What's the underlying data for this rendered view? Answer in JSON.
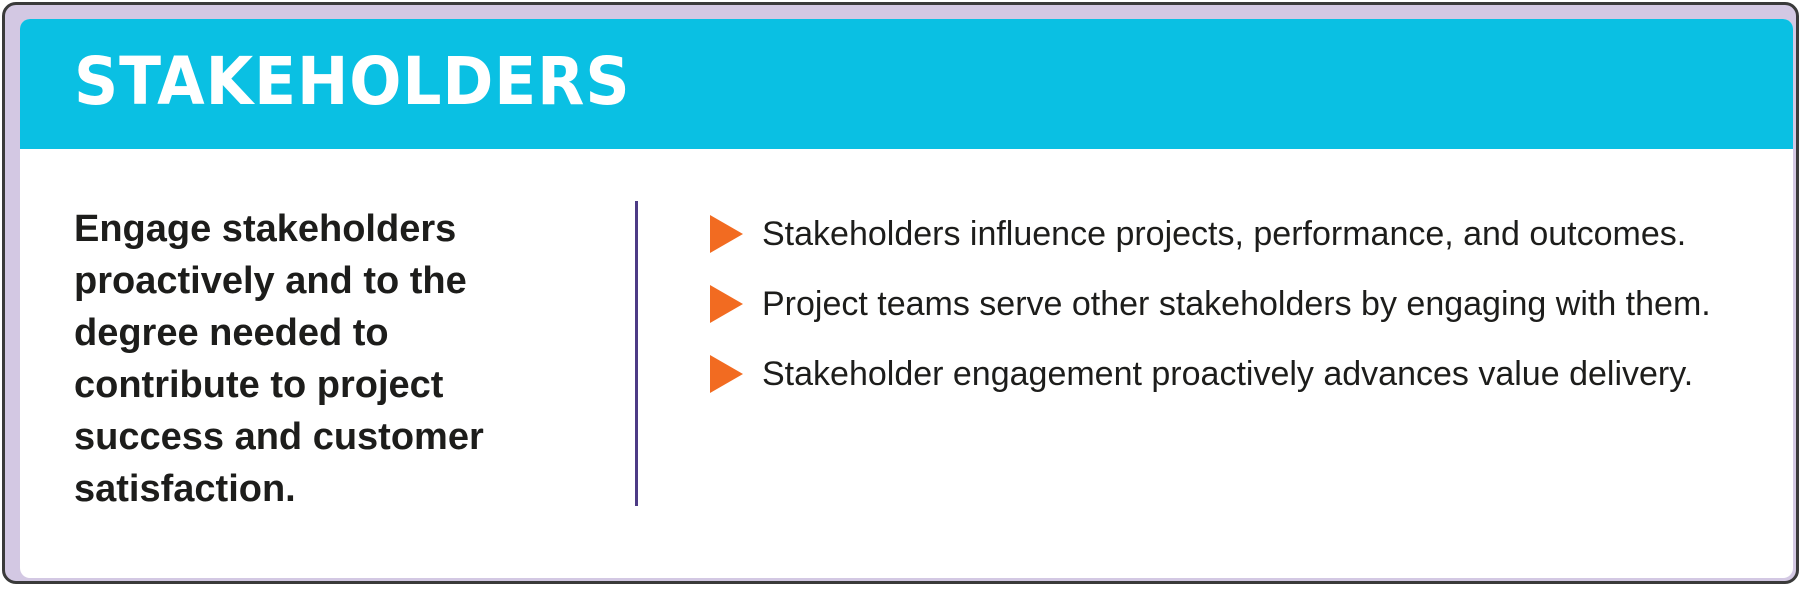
{
  "header": {
    "title": "STAKEHOLDERS"
  },
  "principle": {
    "text": "Engage stakeholders proactively and to the degree needed to contribute to project success and customer satisfaction."
  },
  "points": [
    {
      "text": "Stakeholders influence projects, performance, and outcomes."
    },
    {
      "text": "Project teams serve other stakeholders by engaging with them."
    },
    {
      "text": "Stakeholder engagement proactively advances value delivery."
    }
  ],
  "colors": {
    "header_background": "#0ac0e3",
    "frame_background": "#d3c8e3",
    "divider": "#4d3b85",
    "bullet_arrow": "#f26b21",
    "title_text": "#ffffff",
    "body_text": "#1d1d1b"
  },
  "icons": {
    "bullet": "triangle-arrow-right-icon"
  }
}
